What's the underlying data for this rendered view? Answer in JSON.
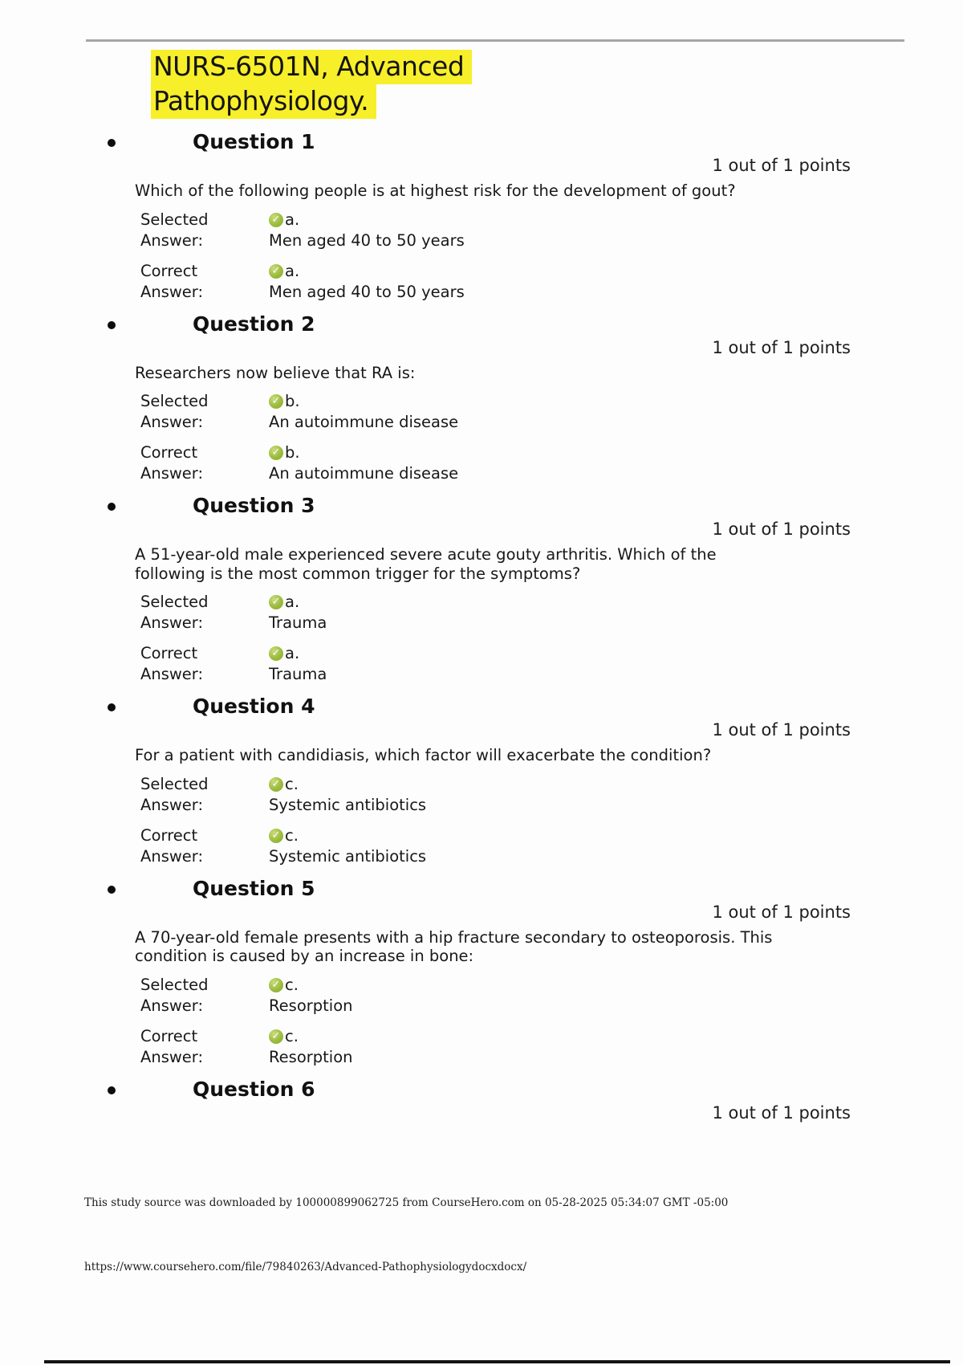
{
  "doc": {
    "title_lines": [
      "NURS-6501N, Advanced",
      "Pathophysiology."
    ]
  },
  "labels": {
    "answer_word": "Answer:"
  },
  "questions": [
    {
      "heading": "Question 1",
      "points": "1 out of 1 points",
      "text": "Which of the following people is at highest risk for the development of gout?",
      "answers": [
        {
          "label": "Selected",
          "letter": "a.",
          "text": "Men aged 40 to 50 years"
        },
        {
          "label": "Correct",
          "letter": "a.",
          "text": "Men aged 40 to 50 years"
        }
      ]
    },
    {
      "heading": "Question 2",
      "points": "1 out of 1 points",
      "text": "Researchers now believe that RA is:",
      "answers": [
        {
          "label": "Selected",
          "letter": "b.",
          "text": "An autoimmune disease"
        },
        {
          "label": "Correct",
          "letter": "b.",
          "text": "An autoimmune disease"
        }
      ]
    },
    {
      "heading": "Question 3",
      "points": "1 out of 1 points",
      "text": "A 51-year-old male experienced severe acute gouty arthritis. Which of the following is the most common trigger for the symptoms?",
      "answers": [
        {
          "label": "Selected",
          "letter": "a.",
          "text": "Trauma"
        },
        {
          "label": "Correct",
          "letter": "a.",
          "text": "Trauma"
        }
      ]
    },
    {
      "heading": "Question 4",
      "points": "1 out of 1 points",
      "text": "For a patient with candidiasis, which factor will exacerbate the condition?",
      "answers": [
        {
          "label": "Selected",
          "letter": "c.",
          "text": "Systemic antibiotics"
        },
        {
          "label": "Correct",
          "letter": "c.",
          "text": "Systemic antibiotics"
        }
      ]
    },
    {
      "heading": "Question 5",
      "points": "1 out of 1 points",
      "text": "A 70-year-old female presents with a hip fracture secondary to osteoporosis. This condition is caused by an increase in bone:",
      "answers": [
        {
          "label": "Selected",
          "letter": "c.",
          "text": "Resorption"
        },
        {
          "label": "Correct",
          "letter": "c.",
          "text": "Resorption"
        }
      ]
    },
    {
      "heading": "Question 6",
      "points": "1 out of 1 points",
      "text": "",
      "answers": []
    }
  ],
  "icons": {
    "correct_check": "check-circle-icon"
  },
  "footer": {
    "line1": "This study source was downloaded by 100000899062725 from CourseHero.com on 05-28-2025 05:34:07 GMT -05:00",
    "url": "https://www.coursehero.com/file/79840263/Advanced-Pathophysiologydocxdocx/"
  },
  "colors": {
    "highlight_yellow": "#f7ef2a",
    "check_green": "#9cbb3d",
    "top_rule_gray": "#a6a6a6"
  }
}
